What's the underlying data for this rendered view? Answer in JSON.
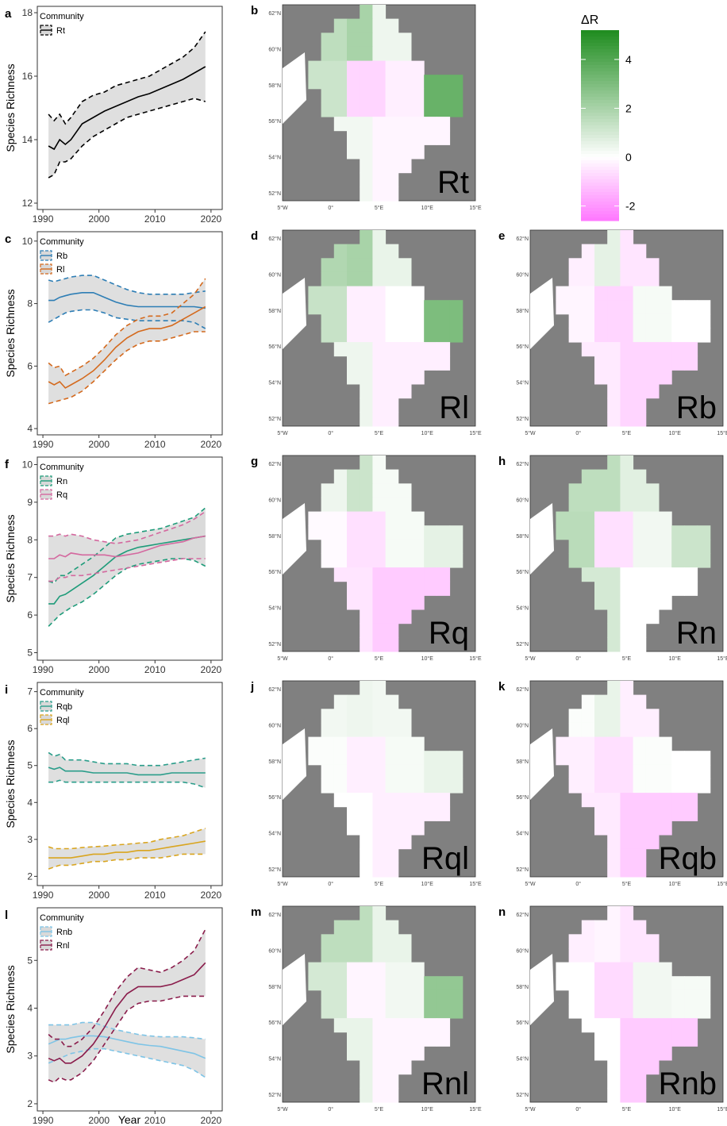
{
  "x_axis_title": "Year",
  "y_axis_title": "Species Richness",
  "legend_title": "Community",
  "colorbar": {
    "title": "ΔR",
    "range": [
      -2.6,
      5.2
    ],
    "ticks": [
      "4",
      "2",
      "0",
      "-2"
    ],
    "tick_values": [
      4,
      2,
      0,
      -2
    ],
    "colors": {
      "negative": "#ff77ff",
      "zero": "#ffffff",
      "positive": "#1e8c1e"
    }
  },
  "map_axes": {
    "lat_ticks": [
      "62°N",
      "60°N",
      "58°N",
      "56°N",
      "54°N",
      "52°N"
    ],
    "lon_ticks": [
      "5°W",
      "0°",
      "5°E",
      "10°E",
      "15°E"
    ]
  },
  "map_colors": {
    "land": "#808080",
    "sea": "#ffffff",
    "coast": "#000000"
  },
  "chart_data": [
    {
      "type": "line",
      "panel_label": "a",
      "title": "",
      "xlabel": "",
      "ylabel": "Species Richness",
      "xlim": [
        1989,
        2022
      ],
      "ylim": [
        11.8,
        18.2
      ],
      "xticks": [
        1990,
        2000,
        2010,
        2020
      ],
      "yticks": [
        12,
        14,
        16,
        18
      ],
      "legend_title": "Community",
      "legend_position": "top-left",
      "x": [
        1991,
        1992,
        1993,
        1994,
        1995,
        1997,
        1999,
        2001,
        2003,
        2005,
        2007,
        2009,
        2011,
        2013,
        2015,
        2017,
        2019
      ],
      "series": [
        {
          "name": "Rt",
          "color": "#000000",
          "values": [
            13.8,
            13.7,
            14.0,
            13.85,
            14.0,
            14.5,
            14.7,
            14.9,
            15.05,
            15.2,
            15.35,
            15.45,
            15.6,
            15.75,
            15.9,
            16.1,
            16.3
          ],
          "lower": [
            12.8,
            12.9,
            13.3,
            13.3,
            13.4,
            13.8,
            14.1,
            14.3,
            14.5,
            14.7,
            14.8,
            14.9,
            15.0,
            15.1,
            15.2,
            15.3,
            15.2
          ],
          "upper": [
            14.8,
            14.6,
            14.8,
            14.5,
            14.7,
            15.2,
            15.4,
            15.5,
            15.7,
            15.8,
            15.9,
            16.0,
            16.2,
            16.4,
            16.6,
            16.9,
            17.4
          ]
        }
      ]
    },
    {
      "type": "line",
      "panel_label": "c",
      "title": "",
      "xlabel": "",
      "ylabel": "Species Richness",
      "xlim": [
        1989,
        2022
      ],
      "ylim": [
        3.8,
        10.3
      ],
      "xticks": [
        1990,
        2000,
        2010,
        2020
      ],
      "yticks": [
        4,
        6,
        8,
        10
      ],
      "legend_title": "Community",
      "legend_position": "top-left",
      "x": [
        1991,
        1992,
        1993,
        1994,
        1995,
        1997,
        1999,
        2001,
        2003,
        2005,
        2007,
        2009,
        2011,
        2013,
        2015,
        2017,
        2019
      ],
      "series": [
        {
          "name": "Rb",
          "color": "#2e7eb5",
          "values": [
            8.1,
            8.1,
            8.2,
            8.25,
            8.3,
            8.35,
            8.35,
            8.2,
            8.05,
            7.95,
            7.9,
            7.9,
            7.9,
            7.9,
            7.9,
            7.9,
            7.85
          ],
          "lower": [
            7.4,
            7.5,
            7.6,
            7.7,
            7.75,
            7.8,
            7.8,
            7.7,
            7.55,
            7.5,
            7.45,
            7.45,
            7.45,
            7.45,
            7.45,
            7.4,
            7.2
          ],
          "upper": [
            8.75,
            8.7,
            8.75,
            8.8,
            8.85,
            8.9,
            8.9,
            8.75,
            8.6,
            8.45,
            8.35,
            8.3,
            8.3,
            8.3,
            8.3,
            8.35,
            8.4
          ]
        },
        {
          "name": "Rl",
          "color": "#d46a1e",
          "values": [
            5.5,
            5.4,
            5.5,
            5.3,
            5.4,
            5.6,
            5.85,
            6.2,
            6.6,
            6.9,
            7.1,
            7.2,
            7.2,
            7.3,
            7.5,
            7.7,
            7.9
          ],
          "lower": [
            4.8,
            4.85,
            4.9,
            4.95,
            5.0,
            5.2,
            5.5,
            5.85,
            6.2,
            6.5,
            6.7,
            6.8,
            6.8,
            6.9,
            7.0,
            7.1,
            7.1
          ],
          "upper": [
            6.1,
            5.95,
            6.0,
            5.7,
            5.8,
            6.0,
            6.25,
            6.6,
            7.0,
            7.3,
            7.5,
            7.6,
            7.6,
            7.7,
            8.0,
            8.3,
            8.8
          ]
        }
      ]
    },
    {
      "type": "line",
      "panel_label": "f",
      "title": "",
      "xlabel": "",
      "ylabel": "Species Richness",
      "xlim": [
        1989,
        2022
      ],
      "ylim": [
        4.8,
        10.2
      ],
      "xticks": [
        1990,
        2000,
        2010,
        2020
      ],
      "yticks": [
        5,
        6,
        7,
        8,
        9,
        10
      ],
      "legend_title": "Community",
      "legend_position": "top-left",
      "x": [
        1991,
        1992,
        1993,
        1994,
        1995,
        1997,
        1999,
        2001,
        2003,
        2005,
        2007,
        2009,
        2011,
        2013,
        2015,
        2017,
        2019
      ],
      "series": [
        {
          "name": "Rn",
          "color": "#1f9c7a",
          "values": [
            6.3,
            6.3,
            6.5,
            6.55,
            6.65,
            6.85,
            7.05,
            7.3,
            7.55,
            7.7,
            7.8,
            7.85,
            7.9,
            7.95,
            8.0,
            8.05,
            8.1
          ],
          "lower": [
            5.7,
            5.85,
            6.0,
            6.1,
            6.2,
            6.35,
            6.55,
            6.8,
            7.05,
            7.25,
            7.35,
            7.4,
            7.45,
            7.5,
            7.5,
            7.45,
            7.3
          ],
          "upper": [
            6.9,
            6.85,
            7.05,
            7.05,
            7.15,
            7.35,
            7.55,
            7.8,
            8.05,
            8.15,
            8.2,
            8.25,
            8.3,
            8.4,
            8.5,
            8.6,
            8.85
          ]
        },
        {
          "name": "Rq",
          "color": "#d4699f",
          "values": [
            7.5,
            7.5,
            7.6,
            7.55,
            7.65,
            7.6,
            7.6,
            7.6,
            7.55,
            7.6,
            7.65,
            7.75,
            7.85,
            7.9,
            7.95,
            8.05,
            8.1
          ],
          "lower": [
            6.9,
            6.9,
            7.0,
            7.0,
            7.05,
            7.05,
            7.1,
            7.15,
            7.2,
            7.25,
            7.3,
            7.35,
            7.4,
            7.45,
            7.5,
            7.5,
            7.5
          ],
          "upper": [
            8.1,
            8.1,
            8.15,
            8.1,
            8.15,
            8.1,
            8.0,
            7.95,
            7.9,
            7.95,
            8.0,
            8.1,
            8.2,
            8.3,
            8.4,
            8.55,
            8.75
          ]
        }
      ]
    },
    {
      "type": "line",
      "panel_label": "i",
      "title": "",
      "xlabel": "",
      "ylabel": "Species Richness",
      "xlim": [
        1989,
        2022
      ],
      "ylim": [
        1.75,
        7.25
      ],
      "xticks": [
        1990,
        2000,
        2010,
        2020
      ],
      "yticks": [
        2,
        3,
        4,
        5,
        6,
        7
      ],
      "legend_title": "Community",
      "legend_position": "top-left",
      "x": [
        1991,
        1992,
        1993,
        1994,
        1995,
        1997,
        1999,
        2001,
        2003,
        2005,
        2007,
        2009,
        2011,
        2013,
        2015,
        2017,
        2019
      ],
      "series": [
        {
          "name": "Rqb",
          "color": "#2a9d8a",
          "values": [
            4.95,
            4.9,
            4.95,
            4.85,
            4.85,
            4.85,
            4.8,
            4.8,
            4.8,
            4.8,
            4.75,
            4.75,
            4.75,
            4.8,
            4.8,
            4.8,
            4.8
          ],
          "lower": [
            4.55,
            4.55,
            4.6,
            4.55,
            4.55,
            4.55,
            4.55,
            4.55,
            4.55,
            4.55,
            4.55,
            4.55,
            4.55,
            4.55,
            4.55,
            4.5,
            4.4
          ],
          "upper": [
            5.35,
            5.25,
            5.3,
            5.15,
            5.15,
            5.15,
            5.1,
            5.05,
            5.05,
            5.05,
            5.0,
            5.0,
            5.0,
            5.05,
            5.1,
            5.15,
            5.2
          ]
        },
        {
          "name": "Rql",
          "color": "#d9a51f",
          "values": [
            2.5,
            2.5,
            2.5,
            2.5,
            2.5,
            2.55,
            2.6,
            2.6,
            2.65,
            2.65,
            2.7,
            2.7,
            2.75,
            2.8,
            2.85,
            2.9,
            2.95
          ],
          "lower": [
            2.2,
            2.25,
            2.3,
            2.3,
            2.3,
            2.35,
            2.4,
            2.4,
            2.45,
            2.45,
            2.5,
            2.5,
            2.5,
            2.55,
            2.6,
            2.6,
            2.6
          ],
          "upper": [
            2.8,
            2.75,
            2.75,
            2.75,
            2.75,
            2.78,
            2.8,
            2.82,
            2.85,
            2.87,
            2.9,
            2.92,
            3.0,
            3.05,
            3.1,
            3.2,
            3.3
          ]
        }
      ]
    },
    {
      "type": "line",
      "panel_label": "l",
      "title": "",
      "xlabel": "Year",
      "ylabel": "Species Richness",
      "xlim": [
        1989,
        2022
      ],
      "ylim": [
        1.85,
        6.1
      ],
      "xticks": [
        1990,
        2000,
        2010,
        2020
      ],
      "yticks": [
        2,
        3,
        4,
        5
      ],
      "legend_title": "Community",
      "legend_position": "top-left",
      "x": [
        1991,
        1992,
        1993,
        1994,
        1995,
        1997,
        1999,
        2001,
        2003,
        2005,
        2007,
        2009,
        2011,
        2013,
        2015,
        2017,
        2019
      ],
      "series": [
        {
          "name": "Rnb",
          "color": "#7ec4e6",
          "values": [
            3.25,
            3.3,
            3.35,
            3.35,
            3.38,
            3.42,
            3.42,
            3.4,
            3.35,
            3.3,
            3.25,
            3.22,
            3.2,
            3.15,
            3.1,
            3.05,
            2.95
          ],
          "lower": [
            2.85,
            2.9,
            2.95,
            3.0,
            3.05,
            3.1,
            3.15,
            3.15,
            3.1,
            3.05,
            3.0,
            2.95,
            2.9,
            2.85,
            2.8,
            2.7,
            2.55
          ],
          "upper": [
            3.65,
            3.65,
            3.65,
            3.65,
            3.65,
            3.7,
            3.7,
            3.62,
            3.55,
            3.5,
            3.45,
            3.42,
            3.4,
            3.4,
            3.4,
            3.38,
            3.35
          ]
        },
        {
          "name": "Rnl",
          "color": "#8a1c4b",
          "values": [
            2.95,
            2.9,
            2.95,
            2.85,
            2.85,
            3.0,
            3.25,
            3.6,
            4.0,
            4.3,
            4.45,
            4.45,
            4.45,
            4.5,
            4.6,
            4.7,
            4.95
          ],
          "lower": [
            2.5,
            2.45,
            2.55,
            2.5,
            2.5,
            2.65,
            2.9,
            3.25,
            3.6,
            3.95,
            4.1,
            4.15,
            4.15,
            4.2,
            4.25,
            4.25,
            4.25
          ],
          "upper": [
            3.45,
            3.35,
            3.35,
            3.2,
            3.2,
            3.35,
            3.6,
            3.95,
            4.35,
            4.65,
            4.85,
            4.8,
            4.75,
            4.85,
            5.0,
            5.2,
            5.65
          ]
        }
      ]
    },
    {
      "type": "heatmap",
      "maps": [
        {
          "panel_label": "b",
          "community": "Rt",
          "pattern": [
            1.5,
            2.0,
            0.4,
            -0.8,
            1.2,
            0.3,
            -0.3,
            3.5,
            -0.2
          ]
        },
        {
          "panel_label": "d",
          "community": "Rl",
          "pattern": [
            1.8,
            2.0,
            0.5,
            -0.3,
            1.3,
            0.4,
            0.0,
            3.0,
            -0.3
          ]
        },
        {
          "panel_label": "e",
          "community": "Rb",
          "pattern": [
            -0.3,
            0.6,
            -0.5,
            -0.8,
            -0.2,
            -0.4,
            0.2,
            0.0,
            -0.8
          ]
        },
        {
          "panel_label": "g",
          "community": "Rq",
          "pattern": [
            0.4,
            1.2,
            0.2,
            -0.6,
            -0.1,
            -0.5,
            0.2,
            0.6,
            -1.0
          ]
        },
        {
          "panel_label": "h",
          "community": "Rn",
          "pattern": [
            1.5,
            1.5,
            0.7,
            -0.6,
            1.6,
            1.0,
            0.3,
            1.2,
            0.0
          ]
        },
        {
          "panel_label": "j",
          "community": "Rql",
          "pattern": [
            0.3,
            0.4,
            0.3,
            -0.3,
            0.1,
            0.0,
            0.2,
            0.5,
            -0.3
          ]
        },
        {
          "panel_label": "k",
          "community": "Rqb",
          "pattern": [
            0.1,
            0.5,
            -0.3,
            -0.6,
            -0.3,
            -0.4,
            0.1,
            0.0,
            -1.0
          ]
        },
        {
          "panel_label": "m",
          "community": "Rnl",
          "pattern": [
            1.5,
            1.5,
            0.5,
            -0.2,
            1.0,
            0.5,
            0.3,
            2.5,
            -0.2
          ]
        },
        {
          "panel_label": "n",
          "community": "Rnb",
          "pattern": [
            -0.3,
            -0.2,
            -0.5,
            -0.7,
            0.0,
            0.0,
            0.3,
            0.2,
            -1.0
          ]
        }
      ]
    }
  ]
}
